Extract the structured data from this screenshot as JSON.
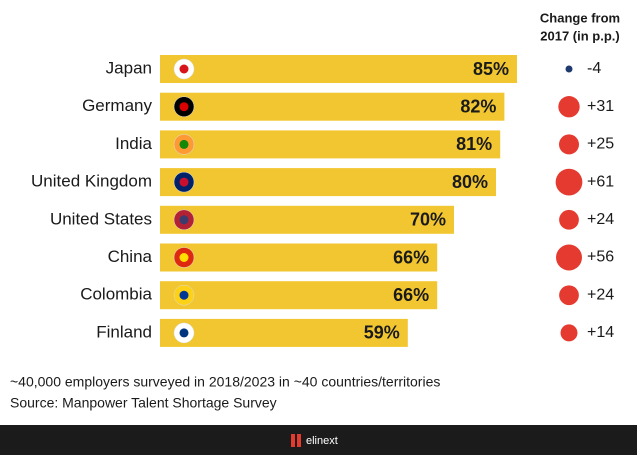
{
  "chart_data": {
    "type": "bar",
    "categories": [
      "Japan",
      "Germany",
      "India",
      "United Kingdom",
      "United States",
      "China",
      "Colombia",
      "Finland"
    ],
    "values": [
      85,
      82,
      81,
      80,
      70,
      66,
      66,
      59
    ],
    "value_labels": [
      "85%",
      "82%",
      "81%",
      "80%",
      "70%",
      "66%",
      "66%",
      "59%"
    ],
    "color": "#f2c630",
    "change_header": [
      "Change from",
      "2017 (in p.p.)"
    ],
    "change_values": [
      -4,
      31,
      25,
      61,
      24,
      56,
      24,
      14
    ],
    "change_labels": [
      "-4",
      "+31",
      "+25",
      "+61",
      "+24",
      "+56",
      "+24",
      "+14"
    ],
    "positive_color": "#e53a2f",
    "negative_color": "#1f3a6e",
    "notes": [
      "~40,000 employers surveyed in 2018/2023 in ~40 countries/territories",
      "Source: Manpower Talent Shortage Survey"
    ],
    "footer_logo": "elinext"
  }
}
